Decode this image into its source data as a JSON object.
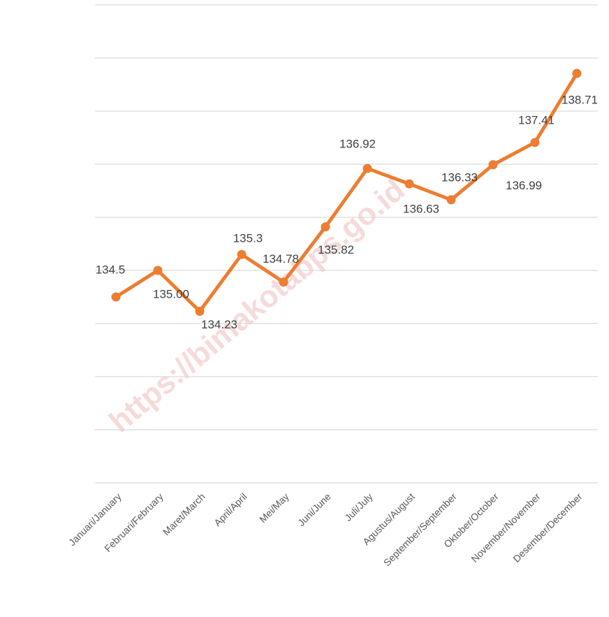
{
  "chart_data": {
    "type": "line",
    "categories": [
      "Januari/January",
      "Februari/February",
      "Maret/March",
      "April/April",
      "Mei/May",
      "Juni/June",
      "Juli/July",
      "Agustus/August",
      "September/September",
      "Oktober/October",
      "November/November",
      "Desember/December"
    ],
    "values": [
      134.5,
      135.0,
      134.23,
      135.3,
      134.78,
      135.82,
      136.92,
      136.63,
      136.33,
      136.99,
      137.41,
      138.71
    ],
    "value_labels": [
      "134.5",
      "135.00",
      "134.23",
      "135.3",
      "134.78",
      "135.82",
      "136.92",
      "136.63",
      "136.33",
      "136.99",
      "137.41",
      "138.71"
    ],
    "color": "#ed7d31",
    "ylim": [
      131,
      140
    ],
    "yticks": [
      131,
      132,
      133,
      134,
      135,
      136,
      137,
      138,
      139,
      140
    ],
    "grid": true,
    "watermark": "https://bimakotabps.go.id"
  }
}
